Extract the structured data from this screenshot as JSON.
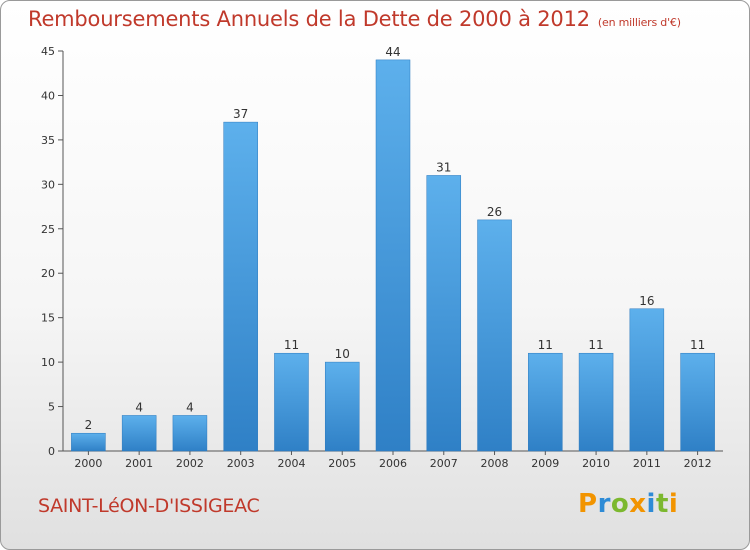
{
  "chart_data": {
    "type": "bar",
    "title": "Remboursements Annuels de la Dette de 2000 à 2012",
    "unit": "(en milliers d'€)",
    "categories": [
      "2000",
      "2001",
      "2002",
      "2003",
      "2004",
      "2005",
      "2006",
      "2007",
      "2008",
      "2009",
      "2010",
      "2011",
      "2012"
    ],
    "values": [
      2,
      4,
      4,
      37,
      11,
      10,
      44,
      31,
      26,
      11,
      11,
      16,
      11
    ],
    "ylim": [
      0,
      45
    ],
    "yticks": [
      0,
      5,
      10,
      15,
      20,
      25,
      30,
      35,
      40,
      45
    ],
    "xlabel": "",
    "ylabel": "",
    "grid": false,
    "bar_color": "#3a8fd6",
    "bar_color_light": "#5db0ec"
  },
  "footer": {
    "commune": "SAINT-LéON-D'ISSIGEAC",
    "logo": [
      "P",
      "r",
      "o",
      "x",
      "i",
      "t",
      "i"
    ],
    "logo_colors": [
      "#f29400",
      "#2e8bd6",
      "#7cb82f",
      "#f29400",
      "#2e8bd6",
      "#7cb82f",
      "#f29400"
    ]
  },
  "colors": {
    "title": "#c0392b"
  }
}
